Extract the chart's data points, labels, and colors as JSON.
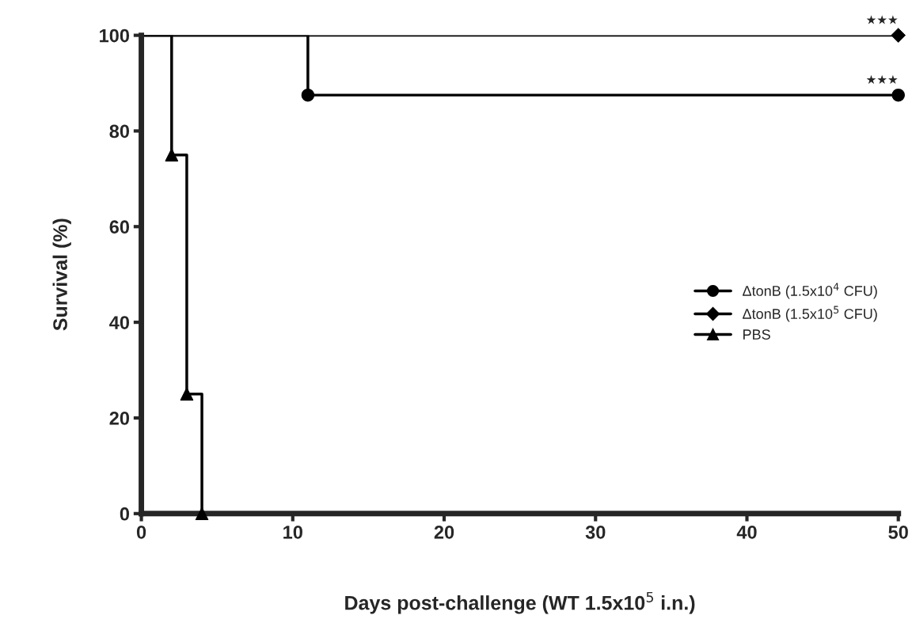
{
  "chart_data": {
    "type": "step",
    "xlabel": "Days post-challenge (WT 1.5x10$^{5}$ i.n.)",
    "ylabel": "Survival (%)",
    "series": [
      {
        "name": "ΔtonB (1.5x10$^{4}$ CFU)",
        "color": "#000000",
        "marker": "circle",
        "x": [
          0,
          11,
          50
        ],
        "values": [
          100,
          87.5,
          87.5
        ]
      },
      {
        "name": "ΔtonB (1.5x10$^{5}$ CFU)",
        "color": "#000000",
        "marker": "diamond",
        "x": [
          0,
          50
        ],
        "values": [
          100,
          100
        ]
      },
      {
        "name": "PBS",
        "color": "#000000",
        "marker": "triangle",
        "x": [
          0,
          2,
          3,
          4
        ],
        "values": [
          100,
          75,
          25,
          0
        ]
      }
    ],
    "xlim": [
      0,
      50
    ],
    "ylim": [
      0,
      100
    ],
    "xticks": [
      0,
      10,
      20,
      30,
      40,
      50
    ],
    "yticks": [
      0,
      20,
      40,
      60,
      80,
      100
    ],
    "annotations": [
      {
        "text": "★★★",
        "x": 50,
        "y": 100
      },
      {
        "text": "★★★",
        "x": 50,
        "y": 87.5
      }
    ],
    "legend": "right",
    "grid": false
  }
}
